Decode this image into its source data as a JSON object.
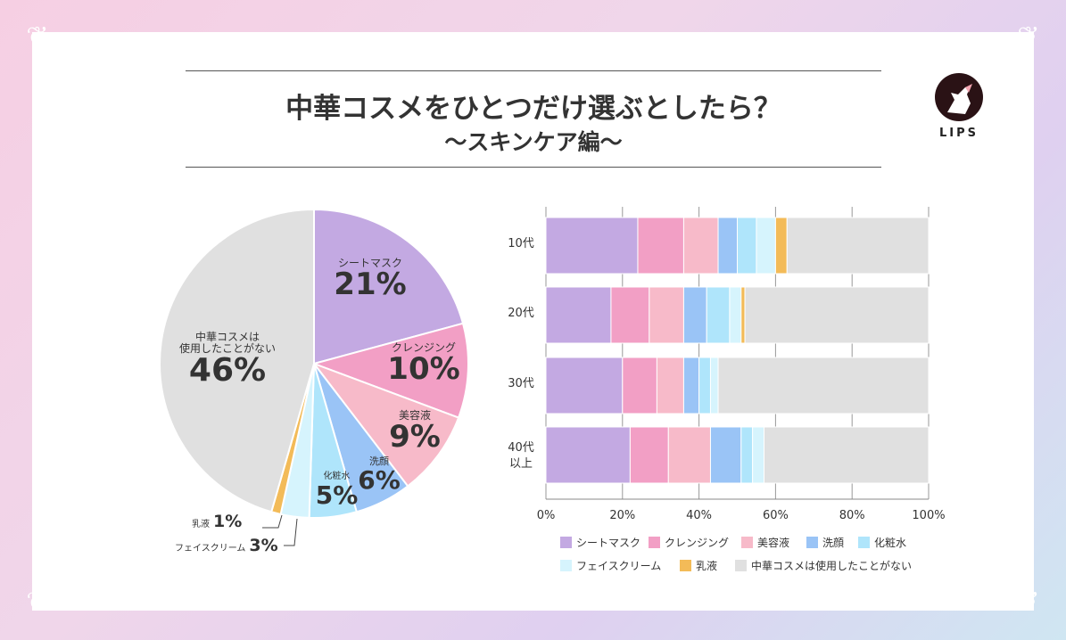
{
  "title": {
    "line1": "中華コスメをひとつだけ選ぶとしたら？",
    "line2": "〜スキンケア編〜"
  },
  "logo": {
    "text": "LIPS"
  },
  "colors": {
    "シートマスク": "#c3a9e2",
    "クレンジング": "#f29fc5",
    "美容液": "#f7bac9",
    "洗顔": "#9ac4f6",
    "化粧水": "#afe5fb",
    "フェイスクリーム": "#d6f4fd",
    "乳液": "#f3bb58",
    "中華コスメは使用したことがない": "#e0e0e0"
  },
  "chart_data": [
    {
      "type": "pie",
      "slices": [
        {
          "label": "シートマスク",
          "value": 21,
          "value_label": "21%"
        },
        {
          "label": "クレンジング",
          "value": 10,
          "value_label": "10%"
        },
        {
          "label": "美容液",
          "value": 9,
          "value_label": "9%"
        },
        {
          "label": "洗顔",
          "value": 6,
          "value_label": "6%"
        },
        {
          "label": "化粧水",
          "value": 5,
          "value_label": "5%"
        },
        {
          "label": "フェイスクリーム",
          "value": 3,
          "value_label": "3%"
        },
        {
          "label": "乳液",
          "value": 1,
          "value_label": "1%"
        },
        {
          "label": "中華コスメは使用したことがない",
          "label_lines": [
            "中華コスメは",
            "使用したことがない"
          ],
          "value": 46,
          "value_label": "46%"
        }
      ]
    },
    {
      "type": "bar",
      "orientation": "horizontal-stacked-100",
      "categories": [
        "10代",
        "20代",
        "30代",
        "40代以上"
      ],
      "category_lines": [
        [
          "10代"
        ],
        [
          "20代"
        ],
        [
          "30代"
        ],
        [
          "40代",
          "以上"
        ]
      ],
      "series": [
        {
          "name": "シートマスク",
          "values": [
            24,
            17,
            20,
            22
          ]
        },
        {
          "name": "クレンジング",
          "values": [
            12,
            10,
            9,
            10
          ]
        },
        {
          "name": "美容液",
          "values": [
            9,
            9,
            7,
            11
          ]
        },
        {
          "name": "洗顔",
          "values": [
            5,
            6,
            4,
            8
          ]
        },
        {
          "name": "化粧水",
          "values": [
            5,
            6,
            3,
            3
          ]
        },
        {
          "name": "フェイスクリーム",
          "values": [
            5,
            3,
            2,
            3
          ]
        },
        {
          "name": "乳液",
          "values": [
            3,
            1,
            0,
            0
          ]
        },
        {
          "name": "中華コスメは使用したことがない",
          "values": [
            37,
            48,
            55,
            43
          ]
        }
      ],
      "xlim": [
        0,
        100
      ],
      "xticks": [
        "0%",
        "20%",
        "40%",
        "60%",
        "80%",
        "100%"
      ],
      "grid": true,
      "legend_position": "bottom"
    }
  ]
}
